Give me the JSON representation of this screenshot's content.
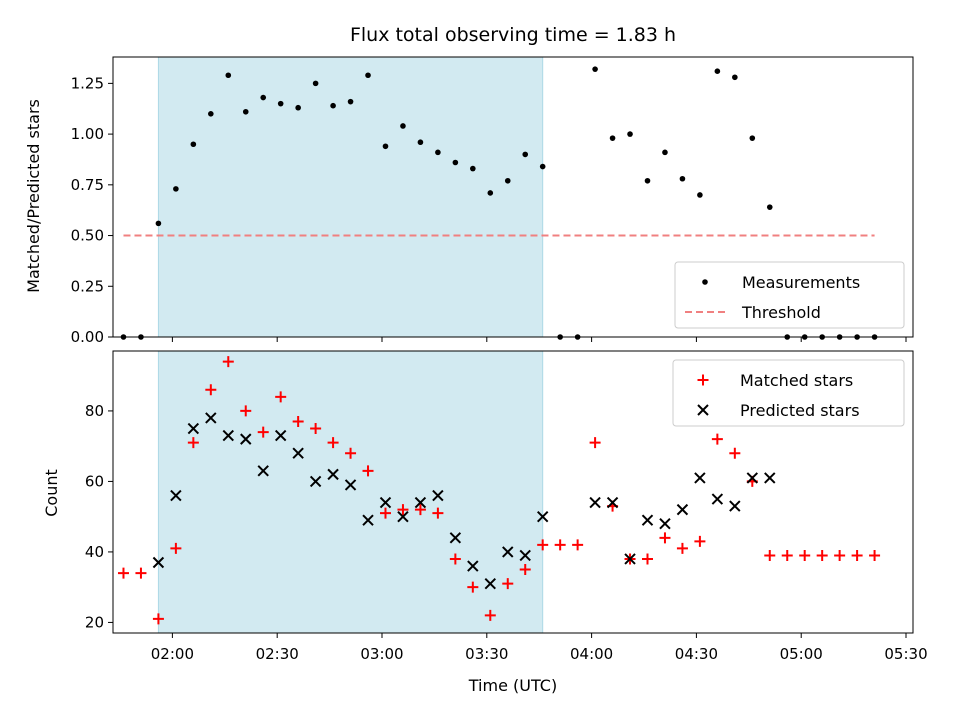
{
  "chart_data": {
    "title": "Flux total observing time = 1.83 h",
    "xlabel": "Time (UTC)",
    "x_ticks": [
      "02:00",
      "02:30",
      "03:00",
      "03:30",
      "04:00",
      "04:30",
      "05:00",
      "05:30"
    ],
    "x_range": [
      "01:43",
      "05:32"
    ],
    "shaded_span": [
      "01:56",
      "03:46"
    ],
    "shaded_color": "#add8e6",
    "panels": [
      {
        "type": "scatter",
        "ylabel": "Matched/Predicted stars",
        "ylim": [
          0,
          1.38
        ],
        "y_ticks": [
          "0.00",
          "0.25",
          "0.50",
          "0.75",
          "1.00",
          "1.25"
        ],
        "legend_position": "lower-right",
        "series": [
          {
            "name": "Measurements",
            "marker": "dot",
            "color": "#000000",
            "x": [
              "01:46",
              "01:51",
              "01:56",
              "02:01",
              "02:06",
              "02:11",
              "02:16",
              "02:21",
              "02:26",
              "02:31",
              "02:36",
              "02:41",
              "02:46",
              "02:51",
              "02:56",
              "03:01",
              "03:06",
              "03:11",
              "03:16",
              "03:21",
              "03:26",
              "03:31",
              "03:36",
              "03:41",
              "03:46",
              "03:51",
              "03:56",
              "04:01",
              "04:06",
              "04:11",
              "04:16",
              "04:21",
              "04:26",
              "04:31",
              "04:36",
              "04:41",
              "04:46",
              "04:51",
              "04:56",
              "05:01",
              "05:06",
              "05:11",
              "05:16",
              "05:21"
            ],
            "y": [
              0,
              0,
              0.56,
              0.73,
              0.95,
              1.1,
              1.29,
              1.11,
              1.18,
              1.15,
              1.13,
              1.25,
              1.14,
              1.16,
              1.29,
              0.94,
              1.04,
              0.96,
              0.91,
              0.86,
              0.83,
              0.71,
              0.77,
              0.9,
              0.84,
              0,
              0,
              1.32,
              0.98,
              1.0,
              0.77,
              0.91,
              0.78,
              0.7,
              1.31,
              1.28,
              0.98,
              0.64,
              0,
              0,
              0,
              0,
              0,
              0
            ]
          },
          {
            "name": "Threshold",
            "marker": "dashed-line",
            "color": "#f08080",
            "x": [
              "01:46",
              "05:21"
            ],
            "y": [
              0.5,
              0.5
            ]
          }
        ]
      },
      {
        "type": "scatter",
        "ylabel": "Count",
        "ylim": [
          17,
          97
        ],
        "y_ticks": [
          "20",
          "40",
          "60",
          "80"
        ],
        "legend_position": "top-right",
        "series": [
          {
            "name": "Matched stars",
            "marker": "plus",
            "color": "#ff0000",
            "x": [
              "01:46",
              "01:51",
              "01:56",
              "02:01",
              "02:06",
              "02:11",
              "02:16",
              "02:21",
              "02:26",
              "02:31",
              "02:36",
              "02:41",
              "02:46",
              "02:51",
              "02:56",
              "03:01",
              "03:06",
              "03:11",
              "03:16",
              "03:21",
              "03:26",
              "03:31",
              "03:36",
              "03:41",
              "03:46",
              "03:51",
              "03:56",
              "04:01",
              "04:06",
              "04:11",
              "04:16",
              "04:21",
              "04:26",
              "04:31",
              "04:36",
              "04:41",
              "04:46",
              "04:51",
              "04:56",
              "05:01",
              "05:06",
              "05:11",
              "05:16",
              "05:21"
            ],
            "y": [
              34,
              34,
              21,
              41,
              71,
              86,
              94,
              80,
              74,
              84,
              77,
              75,
              71,
              68,
              63,
              51,
              52,
              52,
              51,
              38,
              30,
              22,
              31,
              35,
              42,
              42,
              42,
              71,
              53,
              38,
              38,
              44,
              41,
              43,
              72,
              68,
              60,
              39,
              39,
              39,
              39,
              39,
              39,
              39
            ]
          },
          {
            "name": "Predicted stars",
            "marker": "x",
            "color": "#000000",
            "x": [
              "01:56",
              "02:01",
              "02:06",
              "02:11",
              "02:16",
              "02:21",
              "02:26",
              "02:31",
              "02:36",
              "02:41",
              "02:46",
              "02:51",
              "02:56",
              "03:01",
              "03:06",
              "03:11",
              "03:16",
              "03:21",
              "03:26",
              "03:31",
              "03:36",
              "03:41",
              "03:46",
              "04:01",
              "04:06",
              "04:11",
              "04:16",
              "04:21",
              "04:26",
              "04:31",
              "04:36",
              "04:41",
              "04:46",
              "04:51"
            ],
            "y": [
              37,
              56,
              75,
              78,
              73,
              72,
              63,
              73,
              68,
              60,
              62,
              59,
              49,
              54,
              50,
              54,
              56,
              44,
              36,
              31,
              40,
              39,
              50,
              54,
              54,
              38,
              49,
              48,
              52,
              61,
              55,
              53,
              61,
              61
            ]
          }
        ]
      }
    ]
  }
}
